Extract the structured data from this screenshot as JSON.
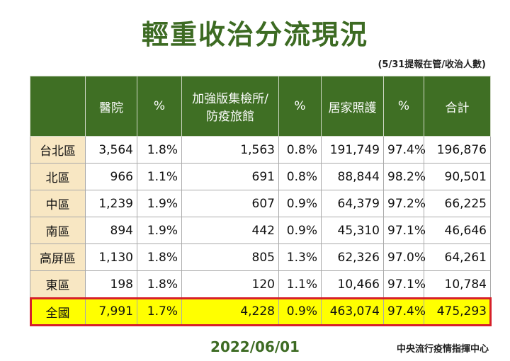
{
  "title": "輕重收治分流現況",
  "note": "(5/31提報在管/收治人數)",
  "table": {
    "header": [
      [
        "醫院"
      ],
      [
        "%"
      ],
      [
        "加強版集檢所/",
        "防疫旅館"
      ],
      [
        "%"
      ],
      [
        "居家照護"
      ],
      [
        "%"
      ],
      [
        "合計"
      ]
    ],
    "rows": [
      {
        "label": "台北區",
        "cells": [
          "3,564",
          "1.8%",
          "1,563",
          "0.8%",
          "191,749",
          "97.4%",
          "196,876"
        ]
      },
      {
        "label": "北區",
        "cells": [
          "966",
          "1.1%",
          "691",
          "0.8%",
          "88,844",
          "98.2%",
          "90,501"
        ]
      },
      {
        "label": "中區",
        "cells": [
          "1,239",
          "1.9%",
          "607",
          "0.9%",
          "64,379",
          "97.2%",
          "66,225"
        ]
      },
      {
        "label": "南區",
        "cells": [
          "894",
          "1.9%",
          "442",
          "0.9%",
          "45,310",
          "97.1%",
          "46,646"
        ]
      },
      {
        "label": "高屏區",
        "cells": [
          "1,130",
          "1.8%",
          "805",
          "1.3%",
          "62,326",
          "97.0%",
          "64,261"
        ]
      },
      {
        "label": "東區",
        "cells": [
          "198",
          "1.8%",
          "120",
          "1.1%",
          "10,466",
          "97.1%",
          "10,784"
        ]
      }
    ],
    "total": {
      "label": "全國",
      "cells": [
        "7,991",
        "1.7%",
        "4,228",
        "0.9%",
        "463,074",
        "97.4%",
        "475,293"
      ]
    }
  },
  "footer": {
    "date": "2022/06/01",
    "source": "中央流行疫情指揮中心"
  }
}
